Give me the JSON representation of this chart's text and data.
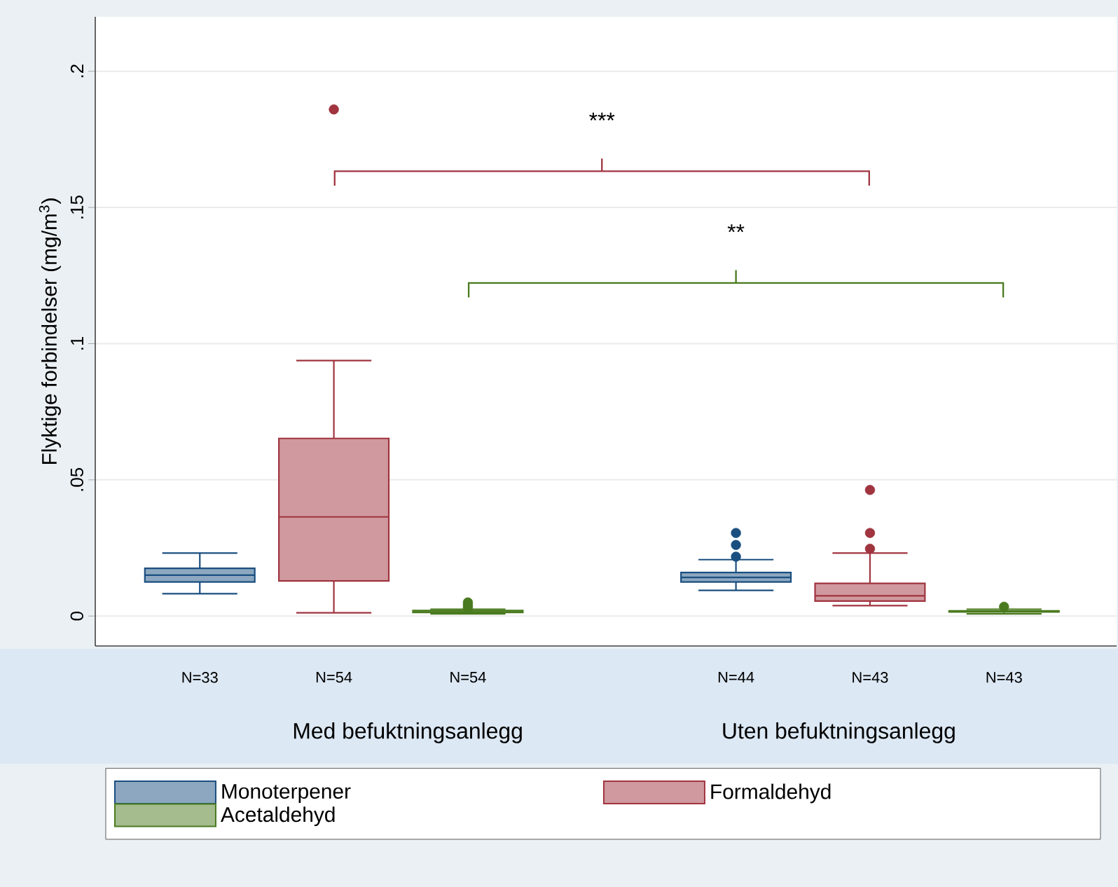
{
  "chart_data": {
    "type": "box",
    "ylabel": "Flyktige forbindelser (mg/m$^{3}$)",
    "categories": [
      "N=33",
      "N=54",
      "N=54",
      null,
      "N=44",
      "N=43",
      "N=43"
    ],
    "series": [
      {
        "name": "Monoterpener",
        "color": "#1a4f80",
        "boxes": [
          {
            "low": 0.0082,
            "q1": 0.0125,
            "median": 0.015,
            "q3": 0.0175,
            "high": 0.0231
          },
          null,
          null,
          null,
          {
            "low": 0.0094,
            "q1": 0.0125,
            "median": 0.0142,
            "q3": 0.016,
            "high": 0.0207,
            "outliers": [
              0.0218,
              0.0261,
              0.0305
            ]
          },
          null,
          null
        ]
      },
      {
        "name": "Formaldehyd",
        "color": "#a0343f",
        "boxes": [
          null,
          {
            "low": 0.0012,
            "q1": 0.0129,
            "median": 0.0364,
            "q3": 0.0652,
            "high": 0.0938,
            "outliers": [
              0.186
            ]
          },
          null,
          null,
          null,
          {
            "low": 0.0038,
            "q1": 0.0055,
            "median": 0.0074,
            "q3": 0.012,
            "high": 0.0231,
            "outliers": [
              0.0247,
              0.0305,
              0.0463
            ]
          },
          null
        ]
      },
      {
        "name": "Acetaldehyd",
        "color": "#4a7a1e",
        "boxes": [
          null,
          null,
          {
            "low": 0.0008,
            "q1": 0.0013,
            "median": 0.0015,
            "q3": 0.002,
            "high": 0.0025,
            "outliers": [
              0.003,
              0.004,
              0.005
            ]
          },
          null,
          null,
          null,
          {
            "low": 0.0008,
            "q1": 0.0015,
            "median": 0.0017,
            "q3": 0.0019,
            "high": 0.0025,
            "outliers": [
              0.0034
            ]
          }
        ]
      }
    ],
    "ylim": [
      -0.011,
      0.22
    ],
    "yticks": [
      0,
      {
        "value": 0.05,
        "label": ".05"
      },
      {
        "value": 0.1,
        "label": ".1"
      },
      {
        "value": 0.15,
        "label": ".15"
      },
      {
        "value": 0.2,
        "label": ".2"
      }
    ],
    "grid": "y",
    "legend": "bottom",
    "marker": "circle",
    "annotations": [
      "***",
      "**",
      "Med befuktningsanlegg",
      "Uten befuktningsanlegg"
    ]
  }
}
